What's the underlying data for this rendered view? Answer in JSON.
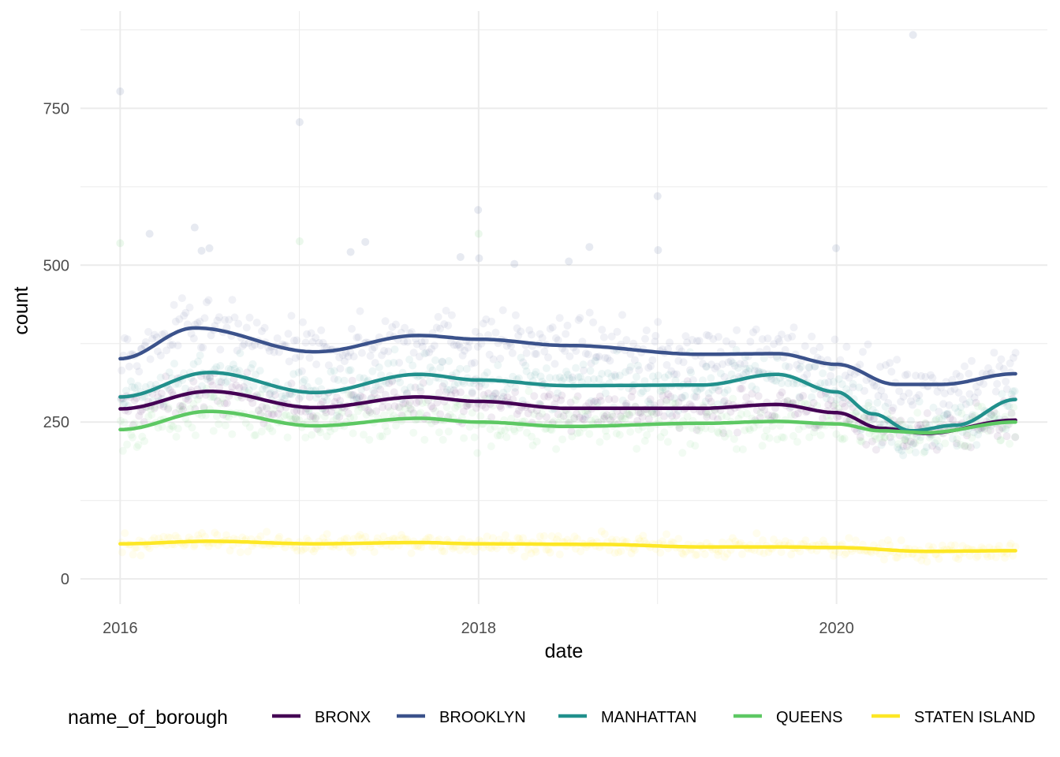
{
  "chart_data": {
    "type": "scatter",
    "title": "",
    "xlabel": "date",
    "ylabel": "count",
    "xlim": [
      "2015-10-12",
      "2021-03-06"
    ],
    "ylim": [
      -40,
      905
    ],
    "x_ticks": [
      "2016",
      "2018",
      "2020"
    ],
    "x_tick_dates": [
      "2016-01-01",
      "2018-01-01",
      "2020-01-01"
    ],
    "y_ticks": [
      0,
      250,
      500,
      750
    ],
    "grid": true,
    "legend_title": "name_of_borough",
    "legend_position": "bottom",
    "series": [
      {
        "name": "BRONX",
        "color": "#440154",
        "smooth": [
          [
            "2016-01-01",
            271
          ],
          [
            "2016-07-01",
            299
          ],
          [
            "2017-02-01",
            273
          ],
          [
            "2017-09-01",
            290
          ],
          [
            "2018-01-01",
            283
          ],
          [
            "2018-07-01",
            272
          ],
          [
            "2019-04-01",
            272
          ],
          [
            "2019-09-01",
            278
          ],
          [
            "2020-01-01",
            265
          ],
          [
            "2020-04-01",
            240
          ],
          [
            "2020-07-01",
            232
          ],
          [
            "2020-12-31",
            253
          ]
        ],
        "spread": 30
      },
      {
        "name": "BROOKLYN",
        "color": "#3B528B",
        "smooth": [
          [
            "2016-01-01",
            351
          ],
          [
            "2016-06-01",
            400
          ],
          [
            "2017-02-01",
            362
          ],
          [
            "2017-09-01",
            388
          ],
          [
            "2018-01-01",
            382
          ],
          [
            "2018-07-01",
            372
          ],
          [
            "2019-04-01",
            358
          ],
          [
            "2019-09-01",
            359
          ],
          [
            "2020-01-01",
            342
          ],
          [
            "2020-05-01",
            310
          ],
          [
            "2020-08-01",
            310
          ],
          [
            "2020-12-31",
            327
          ]
        ],
        "spread": 40
      },
      {
        "name": "MANHATTAN",
        "color": "#21908C",
        "smooth": [
          [
            "2016-01-01",
            290
          ],
          [
            "2016-07-01",
            329
          ],
          [
            "2017-02-01",
            297
          ],
          [
            "2017-09-01",
            326
          ],
          [
            "2018-01-01",
            317
          ],
          [
            "2018-07-01",
            308
          ],
          [
            "2019-04-01",
            309
          ],
          [
            "2019-09-01",
            326
          ],
          [
            "2020-01-01",
            298
          ],
          [
            "2020-03-15",
            263
          ],
          [
            "2020-06-01",
            236
          ],
          [
            "2020-09-01",
            245
          ],
          [
            "2020-12-31",
            286
          ]
        ],
        "spread": 35
      },
      {
        "name": "QUEENS",
        "color": "#5DC863",
        "smooth": [
          [
            "2016-01-01",
            238
          ],
          [
            "2016-07-01",
            267
          ],
          [
            "2017-02-01",
            244
          ],
          [
            "2017-09-01",
            256
          ],
          [
            "2018-01-01",
            250
          ],
          [
            "2018-07-01",
            243
          ],
          [
            "2019-04-01",
            248
          ],
          [
            "2019-09-01",
            251
          ],
          [
            "2020-01-01",
            247
          ],
          [
            "2020-04-01",
            236
          ],
          [
            "2020-07-01",
            233
          ],
          [
            "2020-12-31",
            250
          ]
        ],
        "spread": 35
      },
      {
        "name": "STATEN ISLAND",
        "color": "#FDE725",
        "smooth": [
          [
            "2016-01-01",
            56
          ],
          [
            "2016-07-01",
            60
          ],
          [
            "2017-02-01",
            56
          ],
          [
            "2017-09-01",
            58
          ],
          [
            "2018-01-01",
            56
          ],
          [
            "2018-09-01",
            55
          ],
          [
            "2019-04-01",
            51
          ],
          [
            "2019-09-01",
            51
          ],
          [
            "2020-01-01",
            50
          ],
          [
            "2020-07-01",
            44
          ],
          [
            "2020-12-31",
            45
          ]
        ],
        "spread": 14
      }
    ],
    "outliers": [
      {
        "series": "BROOKLYN",
        "date": "2016-01-01",
        "y": 777
      },
      {
        "series": "BROOKLYN",
        "date": "2016-03-01",
        "y": 550
      },
      {
        "series": "BROOKLYN",
        "date": "2016-06-01",
        "y": 560
      },
      {
        "series": "BROOKLYN",
        "date": "2016-06-15",
        "y": 523
      },
      {
        "series": "BROOKLYN",
        "date": "2016-07-01",
        "y": 527
      },
      {
        "series": "BROOKLYN",
        "date": "2017-01-01",
        "y": 728
      },
      {
        "series": "BROOKLYN",
        "date": "2017-05-15",
        "y": 537
      },
      {
        "series": "BROOKLYN",
        "date": "2017-04-15",
        "y": 521
      },
      {
        "series": "BROOKLYN",
        "date": "2017-11-25",
        "y": 513
      },
      {
        "series": "BROOKLYN",
        "date": "2017-12-31",
        "y": 588
      },
      {
        "series": "BROOKLYN",
        "date": "2018-01-02",
        "y": 511
      },
      {
        "series": "BROOKLYN",
        "date": "2018-03-15",
        "y": 502
      },
      {
        "series": "BROOKLYN",
        "date": "2018-07-04",
        "y": 506
      },
      {
        "series": "BROOKLYN",
        "date": "2018-08-15",
        "y": 529
      },
      {
        "series": "BROOKLYN",
        "date": "2019-01-01",
        "y": 610
      },
      {
        "series": "BROOKLYN",
        "date": "2019-01-02",
        "y": 524
      },
      {
        "series": "BROOKLYN",
        "date": "2019-12-31",
        "y": 527
      },
      {
        "series": "BROOKLYN",
        "date": "2020-06-05",
        "y": 867
      },
      {
        "series": "QUEENS",
        "date": "2016-01-01",
        "y": 535
      },
      {
        "series": "QUEENS",
        "date": "2017-01-01",
        "y": 538
      },
      {
        "series": "QUEENS",
        "date": "2018-01-01",
        "y": 550
      }
    ]
  }
}
